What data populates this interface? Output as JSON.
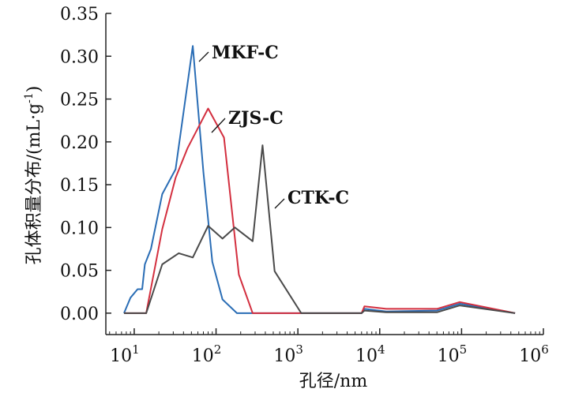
{
  "chart_data": {
    "type": "line",
    "xlabel": "孔径/nm",
    "ylabel_main": "孔体积量分布/(mL·g",
    "ylabel_sup": "-1",
    "ylabel_end": ")",
    "xscale": "log",
    "xlim": [
      4.5,
      1000000
    ],
    "ylim": [
      -0.025,
      0.35
    ],
    "yticks": [
      "0.00",
      "0.05",
      "0.10",
      "0.15",
      "0.20",
      "0.25",
      "0.30",
      "0.35"
    ],
    "xticks": [
      {
        "base": "10",
        "exp": "1"
      },
      {
        "base": "10",
        "exp": "2"
      },
      {
        "base": "10",
        "exp": "3"
      },
      {
        "base": "10",
        "exp": "4"
      },
      {
        "base": "10",
        "exp": "5"
      },
      {
        "base": "10",
        "exp": "6"
      }
    ],
    "series": [
      {
        "name": "MKF-C",
        "color": "#2a6db5",
        "points": [
          [
            7.5,
            0
          ],
          [
            9,
            0.018
          ],
          [
            11,
            0.028
          ],
          [
            12.5,
            0.028
          ],
          [
            13.5,
            0.057
          ],
          [
            16,
            0.075
          ],
          [
            22,
            0.139
          ],
          [
            32,
            0.168
          ],
          [
            52,
            0.312
          ],
          [
            70,
            0.165
          ],
          [
            90,
            0.06
          ],
          [
            120,
            0.016
          ],
          [
            180,
            0
          ],
          [
            6000,
            0
          ],
          [
            6500,
            0.005
          ],
          [
            12000,
            0.002
          ],
          [
            50000,
            0.003
          ],
          [
            95000,
            0.011
          ],
          [
            450000,
            0
          ]
        ]
      },
      {
        "name": "ZJS-C",
        "color": "#d32f3f",
        "points": [
          [
            7.5,
            0
          ],
          [
            14,
            0
          ],
          [
            22,
            0.098
          ],
          [
            32,
            0.158
          ],
          [
            45,
            0.193
          ],
          [
            80,
            0.239
          ],
          [
            125,
            0.205
          ],
          [
            190,
            0.045
          ],
          [
            280,
            0
          ],
          [
            6000,
            0
          ],
          [
            6500,
            0.008
          ],
          [
            12000,
            0.005
          ],
          [
            50000,
            0.005
          ],
          [
            95000,
            0.013
          ],
          [
            450000,
            0
          ]
        ]
      },
      {
        "name": "CTK-C",
        "color": "#4a4a4a",
        "points": [
          [
            7.5,
            0
          ],
          [
            14,
            0
          ],
          [
            22,
            0.057
          ],
          [
            35,
            0.07
          ],
          [
            52,
            0.065
          ],
          [
            80,
            0.102
          ],
          [
            120,
            0.087
          ],
          [
            170,
            0.1
          ],
          [
            280,
            0.084
          ],
          [
            370,
            0.196
          ],
          [
            520,
            0.049
          ],
          [
            1100,
            0
          ],
          [
            6000,
            0
          ],
          [
            6500,
            0.003
          ],
          [
            12000,
            0.001
          ],
          [
            50000,
            0.001
          ],
          [
            95000,
            0.009
          ],
          [
            450000,
            0
          ]
        ]
      }
    ],
    "annotations": [
      {
        "text": "MKF-C",
        "series": 0
      },
      {
        "text": "ZJS-C",
        "series": 1
      },
      {
        "text": "CTK-C",
        "series": 2
      }
    ]
  }
}
